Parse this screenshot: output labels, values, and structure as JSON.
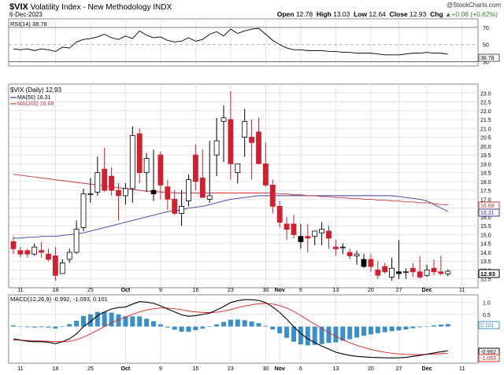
{
  "header": {
    "symbol": "$VIX",
    "name": "Volatility Index - New Methodology",
    "exchange": "INDX",
    "date": "6-Dec-2023",
    "logo": "@StockCharts.com",
    "open_label": "Open",
    "open": "12.78",
    "high_label": "High",
    "high": "13.03",
    "low_label": "Low",
    "low": "12.64",
    "close_label": "Close",
    "close": "12.93",
    "chg_label": "Chg",
    "chg": "+0.08 (+0.62%)",
    "chg_icon": "triangle-up-icon"
  },
  "rsi_panel": {
    "label": "RSI(14) 38.78",
    "value_tag": "38.78"
  },
  "price_panel": {
    "legend_main": "$VIX (Daily) 12.93",
    "legend_ma50": "MA(50) 16.31",
    "legend_ma200": "MA(200) 16.68",
    "tag_ma200": "16.68",
    "tag_ma50": "16.31",
    "tag_last": "12.93"
  },
  "macd_panel": {
    "label": "MACD(12,26,9) -0.992, -1.093, 0.101",
    "tag_hist": "0.101",
    "tag_macd": "-0.992",
    "tag_signal": "-1.093"
  },
  "colors": {
    "up": "#ffffff",
    "down": "#d21e2d",
    "ma50": "#3b3b9a",
    "ma200": "#c4393f",
    "rsi": "#000000",
    "macd": "#000000",
    "signal": "#e02020",
    "hist": "#3a8fc9",
    "grid": "#e3e3e3"
  },
  "chart_data": [
    {
      "type": "line",
      "title": "RSI(14)",
      "x": [
        "Sep 8",
        "Sep 11",
        "Sep 12",
        "Sep 13",
        "Sep 14",
        "Sep 15",
        "Sep 18",
        "Sep 19",
        "Sep 20",
        "Sep 21",
        "Sep 22",
        "Sep 25",
        "Sep 26",
        "Sep 27",
        "Sep 28",
        "Sep 29",
        "Oct 2",
        "Oct 3",
        "Oct 4",
        "Oct 5",
        "Oct 6",
        "Oct 9",
        "Oct 10",
        "Oct 11",
        "Oct 12",
        "Oct 13",
        "Oct 16",
        "Oct 17",
        "Oct 18",
        "Oct 19",
        "Oct 20",
        "Oct 23",
        "Oct 24",
        "Oct 25",
        "Oct 26",
        "Oct 27",
        "Oct 30",
        "Oct 31",
        "Nov 1",
        "Nov 2",
        "Nov 3",
        "Nov 6",
        "Nov 7",
        "Nov 8",
        "Nov 9",
        "Nov 10",
        "Nov 13",
        "Nov 14",
        "Nov 15",
        "Nov 16",
        "Nov 17",
        "Nov 20",
        "Nov 21",
        "Nov 22",
        "Nov 24",
        "Nov 27",
        "Nov 28",
        "Nov 29",
        "Nov 30",
        "Dec 1",
        "Dec 4",
        "Dec 5",
        "Dec 6"
      ],
      "series": [
        {
          "name": "RSI(14)",
          "values": [
            45,
            44,
            45,
            43,
            45,
            44,
            42,
            47,
            46,
            53,
            56,
            57,
            59,
            62,
            58,
            56,
            60,
            57,
            66,
            61,
            58,
            59,
            55,
            53,
            54,
            58,
            54,
            56,
            62,
            65,
            60,
            68,
            63,
            66,
            68,
            69,
            62,
            55,
            50,
            46,
            44,
            44,
            43,
            43,
            43,
            42,
            42,
            41,
            41,
            40,
            40,
            40,
            39,
            38,
            38,
            38,
            39,
            40,
            40,
            41,
            40,
            40,
            38.78
          ]
        }
      ],
      "ylim": [
        25,
        80
      ],
      "yticks": [
        30,
        50,
        70
      ],
      "reference_lines": [
        30,
        50,
        70
      ]
    },
    {
      "type": "bar",
      "title": "$VIX (Daily) 12.93",
      "candlestick": true,
      "x": [
        "Sep 8",
        "Sep 11",
        "Sep 12",
        "Sep 13",
        "Sep 14",
        "Sep 15",
        "Sep 18",
        "Sep 19",
        "Sep 20",
        "Sep 21",
        "Sep 22",
        "Sep 25",
        "Sep 26",
        "Sep 27",
        "Sep 28",
        "Sep 29",
        "Oct 2",
        "Oct 3",
        "Oct 4",
        "Oct 5",
        "Oct 6",
        "Oct 9",
        "Oct 10",
        "Oct 11",
        "Oct 12",
        "Oct 13",
        "Oct 16",
        "Oct 17",
        "Oct 18",
        "Oct 19",
        "Oct 20",
        "Oct 23",
        "Oct 24",
        "Oct 25",
        "Oct 26",
        "Oct 27",
        "Oct 30",
        "Oct 31",
        "Nov 1",
        "Nov 2",
        "Nov 3",
        "Nov 6",
        "Nov 7",
        "Nov 8",
        "Nov 9",
        "Nov 10",
        "Nov 13",
        "Nov 14",
        "Nov 15",
        "Nov 16",
        "Nov 17",
        "Nov 20",
        "Nov 21",
        "Nov 22",
        "Nov 24",
        "Nov 27",
        "Nov 28",
        "Nov 29",
        "Nov 30",
        "Dec 1",
        "Dec 4",
        "Dec 5",
        "Dec 6"
      ],
      "series": [
        {
          "name": "open",
          "values": [
            14.6,
            14.1,
            14.1,
            13.9,
            14.1,
            13.9,
            13.8,
            12.8,
            13.6,
            14.0,
            15.4,
            17.3,
            17.4,
            18.7,
            18.3,
            17.5,
            17.2,
            17.6,
            20.7,
            18.5,
            17.3,
            19.5,
            17.7,
            17.0,
            16.2,
            16.9,
            19.5,
            18.2,
            17.0,
            19.5,
            21.4,
            21.5,
            18.5,
            20.5,
            20.5,
            20.8,
            19.0,
            17.8,
            16.6,
            15.6,
            15.6,
            14.6,
            14.9,
            14.9,
            15.1,
            15.2,
            14.3,
            14.3,
            14.0,
            13.8,
            13.2,
            13.6,
            13.0,
            13.2,
            12.6,
            12.8,
            12.9,
            13.1,
            12.9,
            12.7,
            13.1,
            12.9,
            12.78
          ]
        },
        {
          "name": "high",
          "values": [
            14.9,
            14.3,
            14.2,
            14.5,
            14.6,
            14.2,
            14.3,
            13.6,
            14.2,
            15.8,
            17.6,
            18.2,
            19.4,
            19.9,
            18.8,
            17.9,
            17.9,
            21.1,
            21.0,
            19.6,
            19.8,
            19.7,
            18.1,
            17.5,
            17.5,
            18.4,
            20.1,
            19.8,
            20.3,
            21.6,
            22.3,
            23.1,
            18.9,
            22.1,
            21.5,
            21.6,
            20.2,
            18.1,
            16.9,
            16.0,
            16.1,
            15.6,
            15.6,
            15.2,
            15.7,
            15.5,
            14.7,
            14.5,
            14.2,
            14.1,
            13.9,
            13.9,
            13.5,
            13.4,
            13.7,
            14.7,
            13.1,
            13.4,
            13.8,
            13.3,
            13.6,
            13.8,
            13.03
          ]
        },
        {
          "name": "low",
          "values": [
            13.9,
            13.7,
            13.7,
            13.8,
            13.7,
            13.5,
            12.4,
            12.8,
            13.4,
            13.9,
            15.2,
            16.8,
            17.2,
            17.4,
            17.2,
            15.8,
            16.7,
            16.8,
            17.9,
            17.4,
            16.9,
            17.0,
            16.4,
            16.1,
            15.5,
            16.6,
            17.5,
            17.7,
            16.8,
            18.3,
            19.1,
            18.1,
            17.9,
            19.4,
            18.1,
            19.6,
            17.7,
            16.2,
            15.4,
            14.7,
            14.8,
            14.2,
            14.0,
            14.4,
            14.4,
            14.2,
            13.8,
            13.9,
            13.6,
            13.3,
            13.1,
            12.9,
            12.5,
            12.8,
            12.4,
            12.5,
            12.5,
            12.6,
            12.5,
            12.6,
            12.7,
            12.7,
            12.64
          ]
        },
        {
          "name": "close",
          "values": [
            14.2,
            13.9,
            13.9,
            14.3,
            14.0,
            13.6,
            12.7,
            13.4,
            14.0,
            15.3,
            17.3,
            17.3,
            18.5,
            17.5,
            17.5,
            17.2,
            17.6,
            20.6,
            18.5,
            19.3,
            17.5,
            17.8,
            17.0,
            16.2,
            16.6,
            18.1,
            18.0,
            17.1,
            17.2,
            20.3,
            21.6,
            19.0,
            19.0,
            21.4,
            20.2,
            19.0,
            17.8,
            16.6,
            15.7,
            15.3,
            15.0,
            14.9,
            14.8,
            15.2,
            15.3,
            14.8,
            14.2,
            14.3,
            13.8,
            13.9,
            13.6,
            13.2,
            12.7,
            12.9,
            13.1,
            12.9,
            12.9,
            12.9,
            12.6,
            13.0,
            12.9,
            12.8,
            12.93
          ]
        }
      ],
      "overlays": [
        {
          "name": "MA(50)",
          "values": [
            14.8,
            14.8,
            14.85,
            14.85,
            14.9,
            14.9,
            14.9,
            14.95,
            15.0,
            15.05,
            15.1,
            15.2,
            15.3,
            15.4,
            15.5,
            15.6,
            15.7,
            15.8,
            15.9,
            16.0,
            16.1,
            16.2,
            16.3,
            16.35,
            16.4,
            16.5,
            16.55,
            16.6,
            16.7,
            16.8,
            16.9,
            17.0,
            17.05,
            17.1,
            17.15,
            17.2,
            17.2,
            17.2,
            17.2,
            17.2,
            17.2,
            17.2,
            17.2,
            17.2,
            17.2,
            17.2,
            17.2,
            17.2,
            17.2,
            17.2,
            17.2,
            17.2,
            17.2,
            17.2,
            17.2,
            17.15,
            17.1,
            17.05,
            17.0,
            16.9,
            16.7,
            16.5,
            16.31
          ]
        },
        {
          "name": "MA(200)",
          "values": [
            18.4,
            18.35,
            18.3,
            18.25,
            18.2,
            18.15,
            18.1,
            18.05,
            18.0,
            17.95,
            17.9,
            17.85,
            17.8,
            17.75,
            17.7,
            17.65,
            17.6,
            17.55,
            17.5,
            17.45,
            17.45,
            17.4,
            17.4,
            17.35,
            17.35,
            17.35,
            17.35,
            17.35,
            17.35,
            17.35,
            17.35,
            17.35,
            17.35,
            17.35,
            17.35,
            17.35,
            17.35,
            17.35,
            17.3,
            17.3,
            17.25,
            17.25,
            17.2,
            17.2,
            17.15,
            17.15,
            17.1,
            17.1,
            17.05,
            17.05,
            17.0,
            17.0,
            16.95,
            16.95,
            16.9,
            16.9,
            16.85,
            16.85,
            16.8,
            16.8,
            16.75,
            16.7,
            16.68
          ]
        }
      ],
      "ylim": [
        12.0,
        23.5
      ],
      "yticks": [
        12.5,
        13.0,
        13.5,
        14.0,
        14.5,
        15.0,
        15.5,
        16.0,
        16.5,
        17.0,
        17.5,
        18.0,
        18.5,
        19.0,
        19.5,
        20.0,
        20.5,
        21.0,
        21.5,
        22.0,
        22.5,
        23.0
      ],
      "xticks": [
        "11",
        "18",
        "25",
        "Oct",
        "9",
        "16",
        "23",
        "30",
        "Nov",
        "6",
        "13",
        "20",
        "27",
        "Dec",
        "11"
      ]
    },
    {
      "type": "line",
      "title": "MACD(12,26,9)",
      "x": [
        "Sep 8",
        "Sep 11",
        "Sep 12",
        "Sep 13",
        "Sep 14",
        "Sep 15",
        "Sep 18",
        "Sep 19",
        "Sep 20",
        "Sep 21",
        "Sep 22",
        "Sep 25",
        "Sep 26",
        "Sep 27",
        "Sep 28",
        "Sep 29",
        "Oct 2",
        "Oct 3",
        "Oct 4",
        "Oct 5",
        "Oct 6",
        "Oct 9",
        "Oct 10",
        "Oct 11",
        "Oct 12",
        "Oct 13",
        "Oct 16",
        "Oct 17",
        "Oct 18",
        "Oct 19",
        "Oct 20",
        "Oct 23",
        "Oct 24",
        "Oct 25",
        "Oct 26",
        "Oct 27",
        "Oct 30",
        "Oct 31",
        "Nov 1",
        "Nov 2",
        "Nov 3",
        "Nov 6",
        "Nov 7",
        "Nov 8",
        "Nov 9",
        "Nov 10",
        "Nov 13",
        "Nov 14",
        "Nov 15",
        "Nov 16",
        "Nov 17",
        "Nov 20",
        "Nov 21",
        "Nov 22",
        "Nov 24",
        "Nov 27",
        "Nov 28",
        "Nov 29",
        "Nov 30",
        "Dec 1",
        "Dec 4",
        "Dec 5",
        "Dec 6"
      ],
      "series": [
        {
          "name": "MACD",
          "values": [
            -0.5,
            -0.55,
            -0.6,
            -0.62,
            -0.62,
            -0.64,
            -0.7,
            -0.62,
            -0.5,
            -0.3,
            0.0,
            0.2,
            0.45,
            0.6,
            0.72,
            0.78,
            0.8,
            0.92,
            1.02,
            1.0,
            0.95,
            0.85,
            0.72,
            0.6,
            0.48,
            0.42,
            0.45,
            0.5,
            0.55,
            0.68,
            0.82,
            0.98,
            1.06,
            1.1,
            1.1,
            1.07,
            0.98,
            0.8,
            0.58,
            0.3,
            0.0,
            -0.28,
            -0.5,
            -0.65,
            -0.8,
            -0.92,
            -1.05,
            -1.12,
            -1.18,
            -1.22,
            -1.24,
            -1.26,
            -1.27,
            -1.28,
            -1.28,
            -1.28,
            -1.26,
            -1.22,
            -1.18,
            -1.13,
            -1.08,
            -1.03,
            -0.992
          ]
        },
        {
          "name": "Signal",
          "values": [
            -0.55,
            -0.56,
            -0.57,
            -0.58,
            -0.59,
            -0.6,
            -0.62,
            -0.62,
            -0.6,
            -0.54,
            -0.43,
            -0.3,
            -0.15,
            0.0,
            0.15,
            0.28,
            0.38,
            0.5,
            0.6,
            0.68,
            0.73,
            0.76,
            0.76,
            0.73,
            0.69,
            0.63,
            0.6,
            0.58,
            0.57,
            0.59,
            0.63,
            0.7,
            0.77,
            0.84,
            0.89,
            0.93,
            0.95,
            0.92,
            0.86,
            0.76,
            0.62,
            0.45,
            0.27,
            0.1,
            -0.08,
            -0.25,
            -0.4,
            -0.54,
            -0.66,
            -0.77,
            -0.86,
            -0.94,
            -1.0,
            -1.05,
            -1.09,
            -1.12,
            -1.14,
            -1.15,
            -1.15,
            -1.14,
            -1.13,
            -1.11,
            -1.093
          ]
        },
        {
          "name": "Histogram",
          "values": [
            0.05,
            0.01,
            -0.03,
            -0.04,
            -0.03,
            -0.04,
            -0.08,
            0.0,
            0.1,
            0.24,
            0.43,
            0.5,
            0.6,
            0.6,
            0.57,
            0.5,
            0.42,
            0.42,
            0.42,
            0.32,
            0.22,
            0.09,
            -0.04,
            -0.13,
            -0.21,
            -0.21,
            -0.15,
            -0.08,
            -0.02,
            0.09,
            0.19,
            0.28,
            0.29,
            0.26,
            0.21,
            0.14,
            0.03,
            -0.12,
            -0.28,
            -0.46,
            -0.62,
            -0.73,
            -0.77,
            -0.75,
            -0.72,
            -0.67,
            -0.65,
            -0.58,
            -0.52,
            -0.45,
            -0.38,
            -0.32,
            -0.27,
            -0.23,
            -0.19,
            -0.16,
            -0.12,
            -0.07,
            -0.03,
            0.01,
            0.05,
            0.08,
            0.101
          ]
        }
      ],
      "ylim": [
        -1.5,
        1.3
      ],
      "yticks": [
        0.5,
        1.0
      ],
      "xticks": [
        "11",
        "18",
        "25",
        "Oct",
        "9",
        "16",
        "23",
        "30",
        "Nov",
        "6",
        "13",
        "20",
        "27",
        "Dec",
        "11"
      ]
    }
  ]
}
